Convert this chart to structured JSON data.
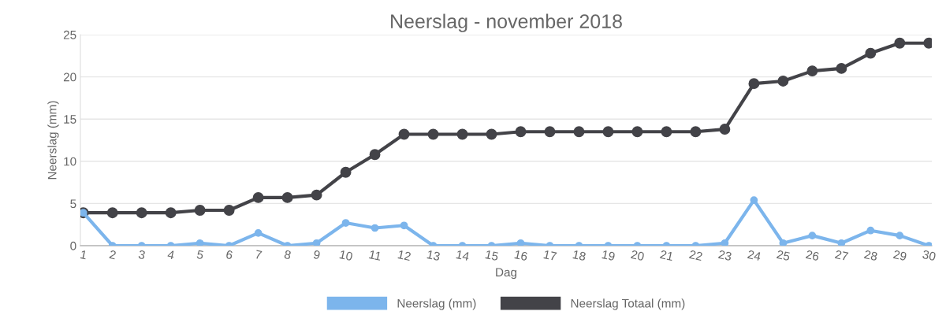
{
  "chart_data": {
    "type": "line",
    "title": "Neerslag - november 2018",
    "xlabel": "Dag",
    "ylabel": "Neerslag (mm)",
    "categories": [
      "1",
      "2",
      "3",
      "4",
      "5",
      "6",
      "7",
      "8",
      "9",
      "10",
      "11",
      "12",
      "13",
      "14",
      "15",
      "16",
      "17",
      "18",
      "19",
      "20",
      "21",
      "22",
      "23",
      "24",
      "25",
      "26",
      "27",
      "28",
      "29",
      "30"
    ],
    "series": [
      {
        "name": "Neerslag (mm)",
        "color": "#7cb5ec",
        "values": [
          3.9,
          0,
          0,
          0,
          0.3,
          0,
          1.5,
          0,
          0.3,
          2.7,
          2.1,
          2.4,
          0,
          0,
          0,
          0.3,
          0,
          0,
          0,
          0,
          0,
          0,
          0.3,
          5.4,
          0.3,
          1.2,
          0.3,
          1.8,
          1.2,
          0
        ]
      },
      {
        "name": "Neerslag Totaal (mm)",
        "color": "#434348",
        "values": [
          3.9,
          3.9,
          3.9,
          3.9,
          4.2,
          4.2,
          5.7,
          5.7,
          6.0,
          8.7,
          10.8,
          13.2,
          13.2,
          13.2,
          13.2,
          13.5,
          13.5,
          13.5,
          13.5,
          13.5,
          13.5,
          13.5,
          13.8,
          19.2,
          19.5,
          20.7,
          21.0,
          22.8,
          24.0,
          24.0
        ]
      }
    ],
    "ylim": [
      0,
      25
    ],
    "yticks": [
      0,
      5,
      10,
      15,
      20,
      25
    ],
    "grid": "y",
    "legend": "bottom",
    "marker": "circle",
    "line_style": "solid"
  }
}
